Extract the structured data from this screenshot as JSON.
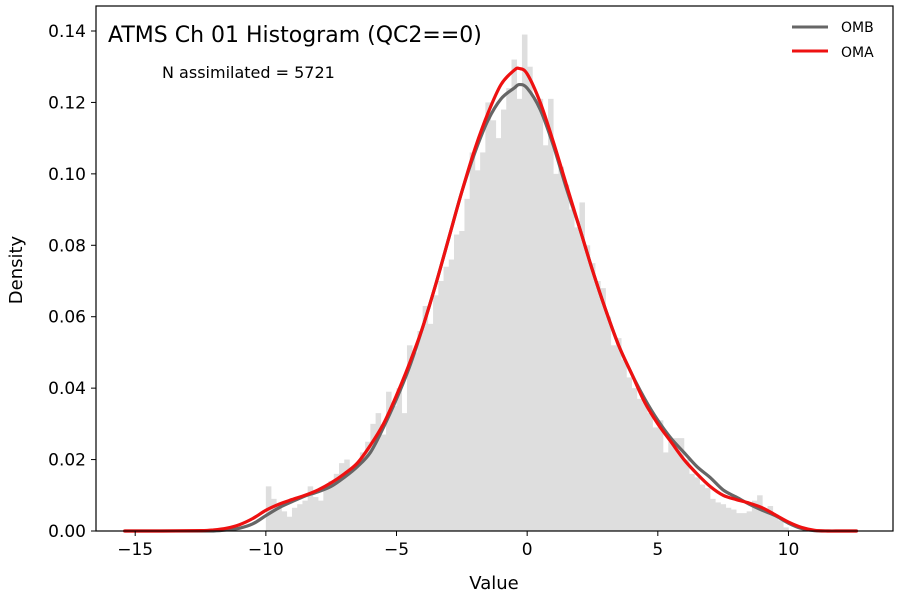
{
  "chart_data": {
    "type": "histogram",
    "title": "ATMS Ch 01 Histogram (QC2==0)",
    "annotation": "N assimilated = 5721",
    "xlabel": "Value",
    "ylabel": "Density",
    "xlim": [
      -16.5,
      14
    ],
    "ylim": [
      0,
      0.147
    ],
    "xticks": [
      -15,
      -10,
      -5,
      0,
      5,
      10
    ],
    "xtick_labels": [
      "−15",
      "−10",
      "−5",
      "0",
      "5",
      "10"
    ],
    "yticks": [
      0,
      0.02,
      0.04,
      0.06,
      0.08,
      0.1,
      0.12,
      0.14
    ],
    "ytick_labels": [
      "0.00",
      "0.02",
      "0.04",
      "0.06",
      "0.08",
      "0.10",
      "0.12",
      "0.14"
    ],
    "grid": false,
    "legend_position": "top-right",
    "histogram": {
      "color": "#dedede",
      "bin_edges": [
        -10.0,
        -9.8,
        -9.6,
        -9.4,
        -9.2,
        -9.0,
        -8.8,
        -8.6,
        -8.4,
        -8.2,
        -8.0,
        -7.8,
        -7.6,
        -7.4,
        -7.2,
        -7.0,
        -6.8,
        -6.6,
        -6.4,
        -6.2,
        -6.0,
        -5.8,
        -5.6,
        -5.4,
        -5.2,
        -5.0,
        -4.8,
        -4.6,
        -4.4,
        -4.2,
        -4.0,
        -3.8,
        -3.6,
        -3.4,
        -3.2,
        -3.0,
        -2.8,
        -2.6,
        -2.4,
        -2.2,
        -2.0,
        -1.8,
        -1.6,
        -1.4,
        -1.2,
        -1.0,
        -0.8,
        -0.6,
        -0.4,
        -0.2,
        0.0,
        0.2,
        0.4,
        0.6,
        0.8,
        1.0,
        1.2,
        1.4,
        1.6,
        1.8,
        2.0,
        2.2,
        2.4,
        2.6,
        2.8,
        3.0,
        3.2,
        3.4,
        3.6,
        3.8,
        4.0,
        4.2,
        4.4,
        4.6,
        4.8,
        5.0,
        5.2,
        5.4,
        5.6,
        5.8,
        6.0,
        6.2,
        6.4,
        6.6,
        6.8,
        7.0,
        7.2,
        7.4,
        7.6,
        7.8,
        8.0,
        8.2,
        8.4,
        8.6,
        8.8,
        9.0,
        9.2,
        9.4,
        9.6,
        9.8,
        10.0
      ],
      "densities": [
        0.0125,
        0.009,
        0.0065,
        0.0055,
        0.004,
        0.0065,
        0.0075,
        0.0085,
        0.0125,
        0.0095,
        0.0085,
        0.012,
        0.014,
        0.016,
        0.019,
        0.02,
        0.017,
        0.018,
        0.022,
        0.025,
        0.03,
        0.033,
        0.027,
        0.039,
        0.035,
        0.04,
        0.033,
        0.052,
        0.05,
        0.056,
        0.063,
        0.058,
        0.066,
        0.07,
        0.074,
        0.076,
        0.083,
        0.084,
        0.093,
        0.106,
        0.101,
        0.106,
        0.12,
        0.115,
        0.11,
        0.118,
        0.124,
        0.132,
        0.121,
        0.139,
        0.13,
        0.121,
        0.121,
        0.108,
        0.121,
        0.1,
        0.102,
        0.097,
        0.09,
        0.085,
        0.092,
        0.08,
        0.075,
        0.07,
        0.068,
        0.06,
        0.052,
        0.054,
        0.048,
        0.043,
        0.04,
        0.037,
        0.036,
        0.033,
        0.029,
        0.031,
        0.022,
        0.025,
        0.026,
        0.026,
        0.02,
        0.016,
        0.015,
        0.013,
        0.012,
        0.009,
        0.008,
        0.0075,
        0.0065,
        0.006,
        0.005,
        0.005,
        0.0055,
        0.0085,
        0.01,
        0.006,
        0.007,
        0.0045,
        0.003,
        0.001
      ]
    },
    "series": [
      {
        "name": "OMB",
        "color": "#666666",
        "x": [
          -15.4,
          -14,
          -12.5,
          -12,
          -11.5,
          -11,
          -10.5,
          -10,
          -9.5,
          -9,
          -8.5,
          -8,
          -7.5,
          -7,
          -6.5,
          -6,
          -5.5,
          -5,
          -4.5,
          -4,
          -3.5,
          -3,
          -2.5,
          -2,
          -1.5,
          -1,
          -0.5,
          -0.3,
          0,
          0.5,
          1,
          1.5,
          2,
          2.5,
          3,
          3.5,
          4,
          4.5,
          5,
          5.5,
          6,
          6.5,
          7,
          7.5,
          8,
          8.5,
          9,
          9.5,
          10,
          10.5,
          11,
          11.5,
          12,
          12.6
        ],
        "y": [
          0.0,
          0.0,
          0.0,
          0.0,
          0.0003,
          0.0008,
          0.002,
          0.0043,
          0.0065,
          0.0082,
          0.0098,
          0.011,
          0.0125,
          0.015,
          0.018,
          0.022,
          0.029,
          0.037,
          0.046,
          0.057,
          0.069,
          0.082,
          0.095,
          0.106,
          0.115,
          0.121,
          0.124,
          0.125,
          0.124,
          0.118,
          0.108,
          0.096,
          0.085,
          0.073,
          0.062,
          0.052,
          0.044,
          0.037,
          0.031,
          0.026,
          0.022,
          0.018,
          0.015,
          0.0115,
          0.0095,
          0.0075,
          0.0058,
          0.0043,
          0.0022,
          0.0007,
          0.0001,
          0.0,
          0.0,
          0.0
        ]
      },
      {
        "name": "OMA",
        "color": "#ee1111",
        "x": [
          -15.4,
          -14,
          -12.5,
          -12,
          -11.5,
          -11,
          -10.5,
          -10,
          -9.5,
          -9,
          -8.5,
          -8,
          -7.5,
          -7,
          -6.5,
          -6,
          -5.5,
          -5,
          -4.5,
          -4,
          -3.5,
          -3,
          -2.5,
          -2,
          -1.5,
          -1,
          -0.5,
          -0.3,
          0,
          0.5,
          1,
          1.5,
          2,
          2.5,
          3,
          3.5,
          4,
          4.5,
          5,
          5.5,
          6,
          6.5,
          7,
          7.5,
          8,
          8.5,
          9,
          9.5,
          10,
          10.5,
          11,
          11.5,
          12,
          12.6
        ],
        "y": [
          0.0,
          0.0,
          0.0001,
          0.0003,
          0.0008,
          0.0018,
          0.0035,
          0.0058,
          0.0075,
          0.0088,
          0.01,
          0.0115,
          0.0135,
          0.016,
          0.019,
          0.024,
          0.03,
          0.038,
          0.047,
          0.057,
          0.069,
          0.082,
          0.095,
          0.107,
          0.117,
          0.125,
          0.129,
          0.1295,
          0.128,
          0.12,
          0.109,
          0.097,
          0.085,
          0.073,
          0.062,
          0.052,
          0.044,
          0.036,
          0.03,
          0.025,
          0.02,
          0.016,
          0.0125,
          0.01,
          0.0088,
          0.0078,
          0.0065,
          0.0045,
          0.0025,
          0.001,
          0.0002,
          0.0,
          0.0,
          0.0
        ]
      }
    ]
  }
}
